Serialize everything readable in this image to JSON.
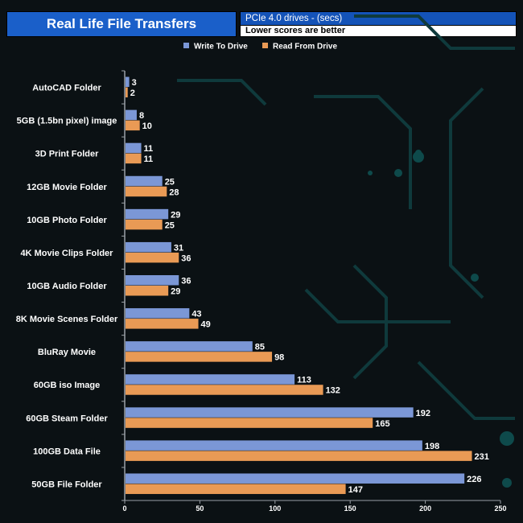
{
  "header": {
    "title": "Real Life File Transfers",
    "subtitle_line1": "PCIe 4.0 drives - (secs)",
    "subtitle_line2": "Lower scores are better"
  },
  "colors": {
    "write": "#7b97d6",
    "read": "#e99a55",
    "title_bg": "#1a5fc9",
    "axis": "#9aa0a6"
  },
  "chart_data": {
    "type": "bar",
    "orientation": "horizontal",
    "title": "Real Life File Transfers",
    "subtitle": "PCIe 4.0 drives - (secs)",
    "note": "Lower scores are better",
    "categories": [
      "AutoCAD Folder",
      "5GB (1.5bn pixel) image",
      "3D Print Folder",
      "12GB Movie Folder",
      "10GB Photo Folder",
      "4K Movie Clips Folder",
      "10GB Audio Folder",
      "8K Movie Scenes Folder",
      "BluRay Movie",
      "60GB iso Image",
      "60GB Steam Folder",
      "100GB Data File",
      "50GB File Folder"
    ],
    "series": [
      {
        "name": "Write To  Drive",
        "values": [
          3,
          8,
          11,
          25,
          29,
          31,
          36,
          43,
          85,
          113,
          192,
          198,
          226
        ]
      },
      {
        "name": "Read From  Drive",
        "values": [
          2,
          10,
          11,
          28,
          25,
          36,
          29,
          49,
          98,
          132,
          165,
          231,
          147
        ]
      }
    ],
    "xlim": [
      0,
      250
    ],
    "xticks": [
      "0",
      "50",
      "100",
      "150",
      "200",
      "250"
    ],
    "legend_position": "top"
  }
}
